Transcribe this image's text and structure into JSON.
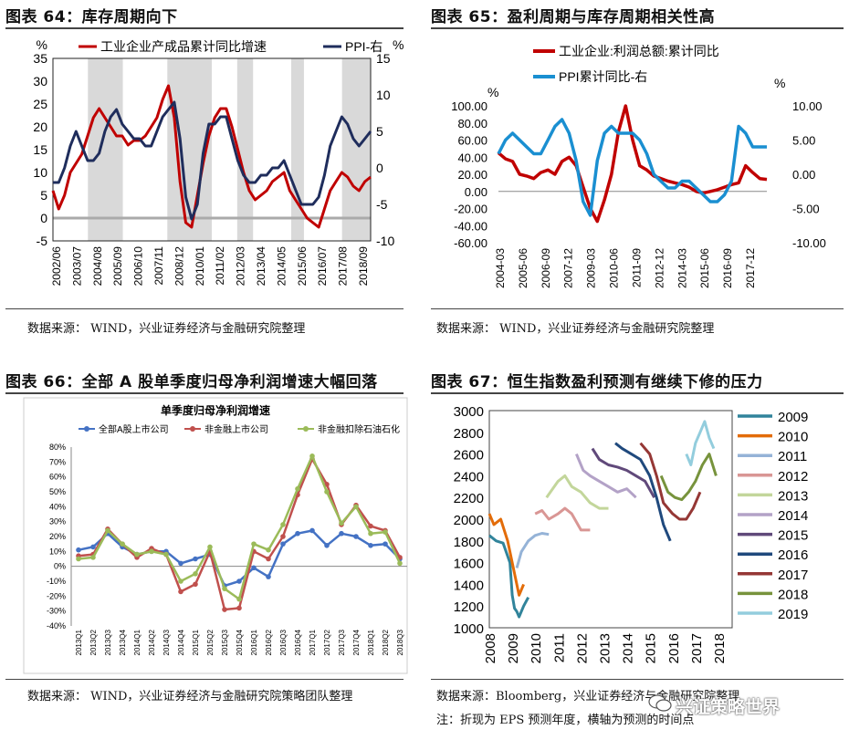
{
  "panels": {
    "p64": {
      "title": "图表 64：库存周期向下",
      "source": "数据来源： WIND，兴业证券经济与金融研究院整理"
    },
    "p65": {
      "title": "图表 65：盈利周期与库存周期相关性高",
      "source": "数据来源： WIND，兴业证券经济与金融研究院整理"
    },
    "p66": {
      "title": "图表 66：全部 A 股单季度归母净利润增速大幅回落",
      "source": "数据来源： WIND，兴业证券经济与金融研究院策略团队整理"
    },
    "p67": {
      "title": "图表 67：恒生指数盈利预测有继续下修的压力",
      "source": "数据来源：Bloomberg，兴业证券经济与金融研究院整理",
      "note": "注：折现为 EPS 预测年度，横轴为预测的时间点"
    }
  },
  "watermark": "兴证策略世界",
  "chart_data": [
    {
      "id": "c64",
      "type": "line",
      "left_unit": "%",
      "right_unit": "%",
      "series": [
        {
          "name": "工业企业产成品累计同比增速",
          "color": "#c00000",
          "axis": "left",
          "values": [
            6,
            2,
            5,
            10,
            12,
            14,
            18,
            22,
            24,
            22,
            20,
            18,
            18,
            16,
            17,
            17,
            18,
            20,
            22,
            26,
            29,
            22,
            8,
            -1,
            -2,
            5,
            12,
            18,
            22,
            24,
            24,
            20,
            15,
            10,
            6,
            4,
            5,
            6,
            8,
            9,
            10,
            6,
            4,
            2,
            0,
            -1,
            -2,
            2,
            6,
            8,
            10,
            9,
            7,
            6,
            8,
            9
          ],
          "annotations": [
            {
              "text": "2002/06",
              "x": 0
            },
            {
              "text": "2003/07",
              "x": 3
            }
          ]
        },
        {
          "name": "PPI-右",
          "color": "#1f2d5c",
          "axis": "right",
          "values": [
            -2,
            -2,
            0,
            3,
            5,
            3,
            1,
            1,
            2,
            5,
            7,
            8,
            6,
            5,
            4,
            4,
            3,
            3,
            5,
            7,
            8,
            9,
            4,
            -4,
            -7,
            -5,
            2,
            6,
            6,
            7,
            7,
            4,
            1,
            -1,
            -2,
            -2,
            -1,
            -1,
            0,
            0,
            1,
            -1,
            -3,
            -5,
            -5,
            -5,
            -4,
            -1,
            3,
            5,
            7,
            6,
            4,
            3,
            4,
            5
          ]
        }
      ],
      "x_labels": [
        "2002/06",
        "2003/07",
        "2004/08",
        "2005/09",
        "2006/10",
        "2007/11",
        "2008/12",
        "2010/01",
        "2011/02",
        "2012/03",
        "2013/04",
        "2014/05",
        "2015/06",
        "2016/07",
        "2017/08",
        "2018/09"
      ],
      "left_ticks": [
        35,
        30,
        25,
        20,
        15,
        10,
        5,
        0,
        -5
      ],
      "right_ticks": [
        15,
        10,
        5,
        0,
        -5,
        -10
      ],
      "shaded_ranges": [
        [
          0.11,
          0.22
        ],
        [
          0.36,
          0.5
        ],
        [
          0.58,
          0.63
        ],
        [
          0.75,
          0.79
        ],
        [
          0.91,
          1.0
        ]
      ]
    },
    {
      "id": "c65",
      "type": "line",
      "left_unit": "%",
      "right_unit": "%",
      "series": [
        {
          "name": "工业企业:利润总额:累计同比",
          "color": "#c00000",
          "axis": "left",
          "values": [
            45,
            38,
            35,
            20,
            18,
            15,
            22,
            25,
            20,
            35,
            40,
            30,
            5,
            -20,
            -35,
            -10,
            20,
            70,
            100,
            60,
            30,
            25,
            18,
            15,
            12,
            10,
            8,
            5,
            0,
            -2,
            0,
            2,
            5,
            8,
            10,
            30,
            22,
            15,
            14
          ]
        },
        {
          "name": "PPI累计同比-右",
          "color": "#1a8fd1",
          "axis": "right",
          "values": [
            3,
            5,
            6,
            5,
            4,
            3,
            3,
            5,
            7,
            8,
            6,
            2,
            -4,
            -6,
            2,
            6,
            7,
            6,
            6,
            6,
            5,
            3,
            0,
            -1,
            -2,
            -2,
            -1,
            -1,
            -2,
            -3,
            -4,
            -4,
            -3,
            -1,
            7,
            6,
            4,
            4,
            4
          ]
        }
      ],
      "x_labels": [
        "2004-03",
        "2005-06",
        "2006-09",
        "2007-12",
        "2009-03",
        "2010-06",
        "2011-09",
        "2012-12",
        "2014-03",
        "2015-06",
        "2016-09",
        "2017-12"
      ],
      "left_ticks": [
        "100.00",
        "80.00",
        "60.00",
        "40.00",
        "20.00",
        "0.00",
        "-20.00",
        "-40.00",
        "-60.00"
      ],
      "right_ticks": [
        "10.00",
        "5.00",
        "0.00",
        "-5.00",
        "-10.00"
      ]
    },
    {
      "id": "c66",
      "type": "line",
      "title": "单季度归母净利润增速",
      "x_labels": [
        "2013Q1",
        "2013Q2",
        "2013Q3",
        "2013Q4",
        "2014Q1",
        "2014Q2",
        "2014Q3",
        "2014Q4",
        "2015Q1",
        "2015Q2",
        "2015Q3",
        "2015Q4",
        "2016Q1",
        "2016Q2",
        "2016Q3",
        "2016Q4",
        "2017Q1",
        "2017Q2",
        "2017Q3",
        "2017Q4",
        "2018Q1",
        "2018Q2",
        "2018Q3"
      ],
      "y_ticks": [
        "80%",
        "70%",
        "60%",
        "50%",
        "40%",
        "30%",
        "20%",
        "10%",
        "0%",
        "-10%",
        "-20%",
        "-30%",
        "-40%"
      ],
      "ylim": [
        -40,
        80
      ],
      "series": [
        {
          "name": "全部A股上市公司",
          "color": "#4472c4",
          "values": [
            11,
            13,
            22,
            13,
            8,
            10,
            10,
            2,
            5,
            8,
            -13,
            -10,
            -1,
            -7,
            15,
            22,
            24,
            14,
            22,
            20,
            14,
            15,
            5
          ]
        },
        {
          "name": "非金融上市公司",
          "color": "#c0504d",
          "values": [
            7,
            8,
            25,
            15,
            6,
            12,
            8,
            -17,
            -12,
            10,
            -29,
            -28,
            10,
            5,
            20,
            48,
            72,
            55,
            28,
            41,
            27,
            24,
            6
          ]
        },
        {
          "name": "非金融扣除石油石化",
          "color": "#9bbb59",
          "values": [
            5,
            6,
            24,
            15,
            8,
            10,
            8,
            -10,
            -5,
            13,
            -15,
            -22,
            15,
            11,
            28,
            52,
            74,
            50,
            29,
            40,
            22,
            23,
            2
          ]
        }
      ]
    },
    {
      "id": "c67",
      "type": "line",
      "x_labels": [
        "2008",
        "2009",
        "2010",
        "2011",
        "2012",
        "2013",
        "2014",
        "2015",
        "2016",
        "2017",
        "2018"
      ],
      "y_ticks": [
        3000,
        2800,
        2600,
        2400,
        2200,
        2000,
        1800,
        1600,
        1400,
        1200,
        1000
      ],
      "ylim": [
        1000,
        3000
      ],
      "series": [
        {
          "name": "2009",
          "color": "#31849b",
          "x": [
            2008.0,
            2008.3,
            2008.6,
            2008.9,
            2009.0,
            2009.1,
            2009.2,
            2009.3,
            2009.5,
            2009.7
          ],
          "values": [
            1850,
            1800,
            1780,
            1600,
            1300,
            1180,
            1150,
            1100,
            1200,
            1280
          ]
        },
        {
          "name": "2010",
          "color": "#e36c09",
          "x": [
            2008.0,
            2008.2,
            2008.5,
            2008.8,
            2009.1,
            2009.3,
            2009.5
          ],
          "values": [
            2050,
            1950,
            2000,
            1800,
            1500,
            1300,
            1400
          ]
        },
        {
          "name": "2011",
          "color": "#95b3d7",
          "x": [
            2009.2,
            2009.4,
            2009.7,
            2010.0,
            2010.3,
            2010.6
          ],
          "values": [
            1550,
            1700,
            1800,
            1850,
            1870,
            1860
          ]
        },
        {
          "name": "2012",
          "color": "#d99694",
          "x": [
            2010.0,
            2010.3,
            2010.6,
            2011.0,
            2011.3,
            2011.6,
            2012.0,
            2012.4
          ],
          "values": [
            2050,
            2080,
            2000,
            2050,
            2100,
            2050,
            1900,
            1900
          ]
        },
        {
          "name": "2013",
          "color": "#c3d69b",
          "x": [
            2010.5,
            2011.0,
            2011.3,
            2011.6,
            2012.0,
            2012.4,
            2012.8,
            2013.2
          ],
          "values": [
            2200,
            2350,
            2400,
            2300,
            2250,
            2150,
            2100,
            2100
          ]
        },
        {
          "name": "2014",
          "color": "#b3a2c7",
          "x": [
            2011.8,
            2012.1,
            2012.4,
            2012.8,
            2013.2,
            2013.6,
            2014.0,
            2014.4
          ],
          "values": [
            2600,
            2450,
            2400,
            2350,
            2300,
            2250,
            2280,
            2200
          ]
        },
        {
          "name": "2015",
          "color": "#60497a",
          "x": [
            2012.5,
            2012.8,
            2013.2,
            2013.6,
            2014.0,
            2014.4,
            2014.8,
            2015.2
          ],
          "values": [
            2650,
            2550,
            2500,
            2480,
            2450,
            2400,
            2350,
            2200
          ]
        },
        {
          "name": "2016",
          "color": "#1f497d",
          "x": [
            2013.5,
            2013.8,
            2014.2,
            2014.6,
            2015.0,
            2015.3,
            2015.6,
            2015.9
          ],
          "values": [
            2700,
            2650,
            2600,
            2550,
            2400,
            2200,
            1950,
            1800
          ]
        },
        {
          "name": "2017",
          "color": "#953735",
          "x": [
            2014.6,
            2015.0,
            2015.3,
            2015.6,
            2016.0,
            2016.3,
            2016.6,
            2016.9,
            2017.2
          ],
          "values": [
            2700,
            2600,
            2400,
            2150,
            2050,
            2000,
            2000,
            2100,
            2250
          ]
        },
        {
          "name": "2018",
          "color": "#77933c",
          "x": [
            2015.5,
            2015.8,
            2016.1,
            2016.4,
            2016.7,
            2017.0,
            2017.3,
            2017.6,
            2017.9
          ],
          "values": [
            2400,
            2250,
            2200,
            2180,
            2250,
            2350,
            2500,
            2600,
            2400
          ]
        },
        {
          "name": "2019",
          "color": "#93cddd",
          "x": [
            2016.6,
            2016.8,
            2017.0,
            2017.2,
            2017.4,
            2017.6,
            2017.8
          ],
          "values": [
            2600,
            2500,
            2700,
            2800,
            2900,
            2750,
            2650
          ]
        }
      ]
    }
  ]
}
